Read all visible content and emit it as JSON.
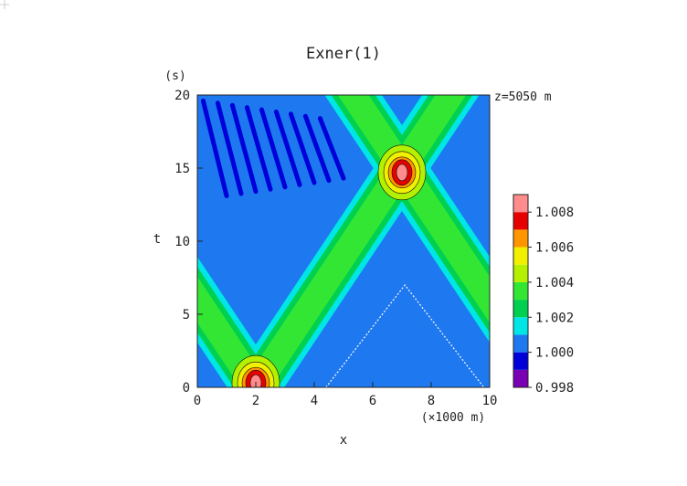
{
  "chart_data": {
    "type": "heatmap",
    "title": "Exner(1)",
    "xlabel": "x",
    "xunit": "(×1000 m)",
    "ylabel": "t",
    "yunit": "(s)",
    "annotation": "z=5050 m",
    "xlim": [
      0,
      10
    ],
    "ylim": [
      0,
      20
    ],
    "xticks": [
      "0",
      "2",
      "4",
      "6",
      "8",
      "10"
    ],
    "yticks": [
      "0",
      "5",
      "10",
      "15",
      "20"
    ],
    "colorbar": {
      "levels": [
        0.998,
        0.999,
        1.0,
        1.001,
        1.002,
        1.003,
        1.004,
        1.005,
        1.006,
        1.007,
        1.008
      ],
      "labels": [
        "0.998",
        "1.000",
        "1.002",
        "1.004",
        "1.006",
        "1.008"
      ],
      "colors": [
        "#7a00b4",
        "#0000d8",
        "#1e78f0",
        "#00e6e6",
        "#00d050",
        "#33e633",
        "#b4f000",
        "#f0f000",
        "#ff9600",
        "#e60000",
        "#ff8c8c"
      ]
    },
    "features": [
      {
        "name": "pulse_left_to_right",
        "path": [
          [
            2,
            0
          ],
          [
            7,
            15
          ],
          [
            10,
            24
          ]
        ],
        "peak": 1.008
      },
      {
        "name": "pulse_right_to_left",
        "path": [
          [
            2,
            0
          ],
          [
            -3,
            15
          ]
        ],
        "peak": 1.008
      },
      {
        "name": "pulse_b",
        "path": [
          [
            7,
            15
          ],
          [
            2,
            30
          ]
        ]
      },
      {
        "name": "pulse_c",
        "path": [
          [
            7,
            15
          ],
          [
            12,
            0
          ]
        ]
      },
      {
        "name": "crossing_max_1",
        "x": 2,
        "t": 0.3,
        "value": 1.008
      },
      {
        "name": "crossing_max_2",
        "x": 7,
        "t": 14.7,
        "value": 1.008
      }
    ],
    "background_value": 1.0
  }
}
